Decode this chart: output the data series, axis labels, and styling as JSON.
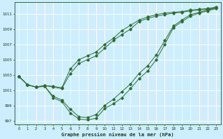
{
  "title": "Graphe pression niveau de la mer (hPa)",
  "bg_color": "#cceeff",
  "grid_color": "#ffffff",
  "line_color": "#2d6e2d",
  "ylim": [
    996.5,
    1012.5
  ],
  "xlim": [
    -0.5,
    23.5
  ],
  "yticks": [
    997,
    999,
    1001,
    1003,
    1005,
    1007,
    1009,
    1011
  ],
  "xticks": [
    0,
    1,
    2,
    3,
    4,
    5,
    6,
    7,
    8,
    9,
    10,
    11,
    12,
    13,
    14,
    15,
    16,
    17,
    18,
    19,
    20,
    21,
    22,
    23
  ],
  "line1_x": [
    0,
    1,
    2,
    3,
    4,
    5,
    6,
    7,
    8,
    9,
    10,
    11,
    12,
    13,
    14,
    15,
    16,
    17,
    18,
    19,
    20,
    21,
    22,
    23
  ],
  "line1_y": [
    1002.8,
    1001.7,
    1001.4,
    1001.5,
    1000.0,
    999.5,
    998.0,
    997.2,
    997.1,
    997.3,
    998.6,
    999.2,
    1000.0,
    1001.2,
    1002.5,
    1003.5,
    1005.0,
    1007.0,
    1009.2,
    1010.0,
    1010.7,
    1011.1,
    1011.4,
    1011.7
  ],
  "line2_x": [
    0,
    1,
    2,
    3,
    4,
    5,
    6,
    7,
    8,
    9,
    10,
    11,
    12,
    13,
    14,
    15,
    16,
    17,
    18,
    19,
    20,
    21,
    22,
    23
  ],
  "line2_y": [
    1002.8,
    1001.7,
    1001.4,
    1001.5,
    1000.2,
    999.7,
    998.5,
    997.5,
    997.4,
    997.8,
    999.0,
    999.8,
    1000.8,
    1001.8,
    1003.2,
    1004.2,
    1005.6,
    1007.5,
    1009.4,
    1010.2,
    1010.9,
    1011.2,
    1011.5,
    1011.8
  ],
  "line3_x": [
    0,
    1,
    2,
    3,
    4,
    5,
    6,
    7,
    8,
    9,
    10,
    11,
    12,
    13,
    14,
    15,
    16,
    17,
    18,
    19,
    20,
    21,
    22,
    23
  ],
  "line3_y": [
    1002.8,
    1001.7,
    1001.4,
    1001.6,
    1001.4,
    1001.2,
    1003.2,
    1004.5,
    1005.0,
    1005.5,
    1006.5,
    1007.5,
    1008.3,
    1009.0,
    1010.0,
    1010.4,
    1010.7,
    1010.9,
    1011.1,
    1011.2,
    1011.4,
    1011.5,
    1011.6,
    1011.8
  ],
  "line4_x": [
    0,
    1,
    2,
    3,
    4,
    5,
    6,
    7,
    8,
    9,
    10,
    11,
    12,
    13,
    14,
    15,
    16,
    17,
    18,
    19,
    20,
    21,
    22,
    23
  ],
  "line4_y": [
    1002.8,
    1001.7,
    1001.4,
    1001.6,
    1001.5,
    1001.3,
    1003.8,
    1005.0,
    1005.5,
    1006.0,
    1007.0,
    1007.8,
    1008.8,
    1009.5,
    1010.2,
    1010.6,
    1010.9,
    1011.1,
    1011.2,
    1011.3,
    1011.5,
    1011.6,
    1011.7,
    1011.9
  ]
}
